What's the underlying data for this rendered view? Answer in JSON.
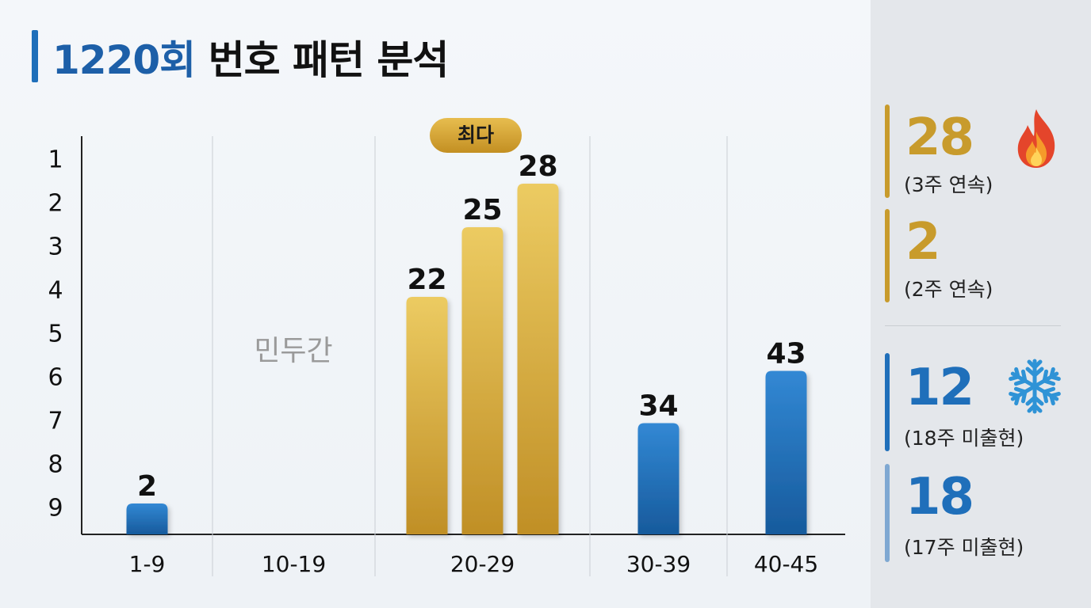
{
  "title": {
    "round": "1220회",
    "rest": " 번호 패턴 분석"
  },
  "chart_data": {
    "type": "bar",
    "categories": [
      "1-9",
      "10-19",
      "20-29",
      "30-39",
      "40-45"
    ],
    "y_tick_labels": [
      "1",
      "2",
      "3",
      "4",
      "5",
      "6",
      "7",
      "8",
      "9"
    ],
    "bars": [
      {
        "value": 2,
        "level": 9,
        "group": "1-9",
        "color": "blue"
      },
      {
        "value": 22,
        "level": 4.2,
        "group": "20-29",
        "color": "gold"
      },
      {
        "value": 25,
        "level": 2.6,
        "group": "20-29",
        "color": "gold"
      },
      {
        "value": 28,
        "level": 1.6,
        "group": "20-29",
        "color": "gold"
      },
      {
        "value": 34,
        "level": 7.1,
        "group": "30-39",
        "color": "blue"
      },
      {
        "value": 43,
        "level": 5.9,
        "group": "40-45",
        "color": "blue"
      }
    ],
    "empty_label": "민두간",
    "max_badge": "최다",
    "colors": {
      "gold": "#d8a836",
      "blue": "#1f6fba",
      "badge": "#d4a02c",
      "empty": "#9a9a9a"
    }
  },
  "side": {
    "hot": [
      {
        "value": "28",
        "sub": "(3주 연속)",
        "icon": "fire-icon"
      },
      {
        "value": "2",
        "sub": "(2주 연속)"
      }
    ],
    "cold": [
      {
        "value": "12",
        "sub": "(18주 미출현)",
        "icon": "snowflake-icon"
      },
      {
        "value": "18",
        "sub": "(17주 미출현)"
      }
    ],
    "colors": {
      "hot": "#c89b2c",
      "cold": "#1f6fba",
      "cold_light": "#7fa8d2"
    }
  }
}
